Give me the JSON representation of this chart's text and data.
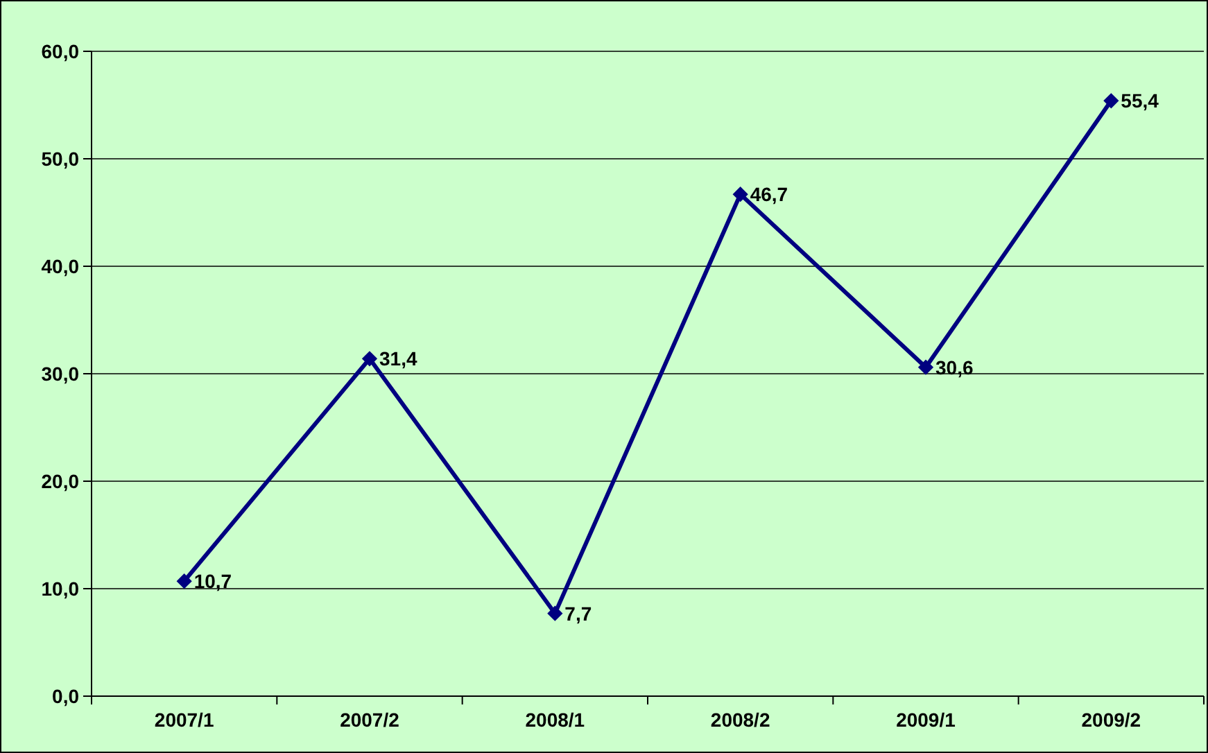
{
  "chart_data": {
    "type": "line",
    "categories": [
      "2007/1",
      "2007/2",
      "2008/1",
      "2008/2",
      "2009/1",
      "2009/2"
    ],
    "series": [
      {
        "color": "#000080",
        "values": [
          10.7,
          31.4,
          7.7,
          46.7,
          30.6,
          55.4
        ],
        "value_labels": [
          "10,7",
          "31,4",
          "7,7",
          "46,7",
          "30,6",
          "55,4"
        ]
      }
    ],
    "ylim": [
      0,
      60
    ],
    "yticks": [
      {
        "value": 0,
        "label": "0,0"
      },
      {
        "value": 10,
        "label": "10,0"
      },
      {
        "value": 20,
        "label": "20,0"
      },
      {
        "value": 30,
        "label": "30,0"
      },
      {
        "value": 40,
        "label": "40,0"
      },
      {
        "value": 50,
        "label": "50,0"
      },
      {
        "value": 60,
        "label": "60,0"
      }
    ],
    "grid": "y",
    "marker": "diamond",
    "line_style": "solid"
  }
}
